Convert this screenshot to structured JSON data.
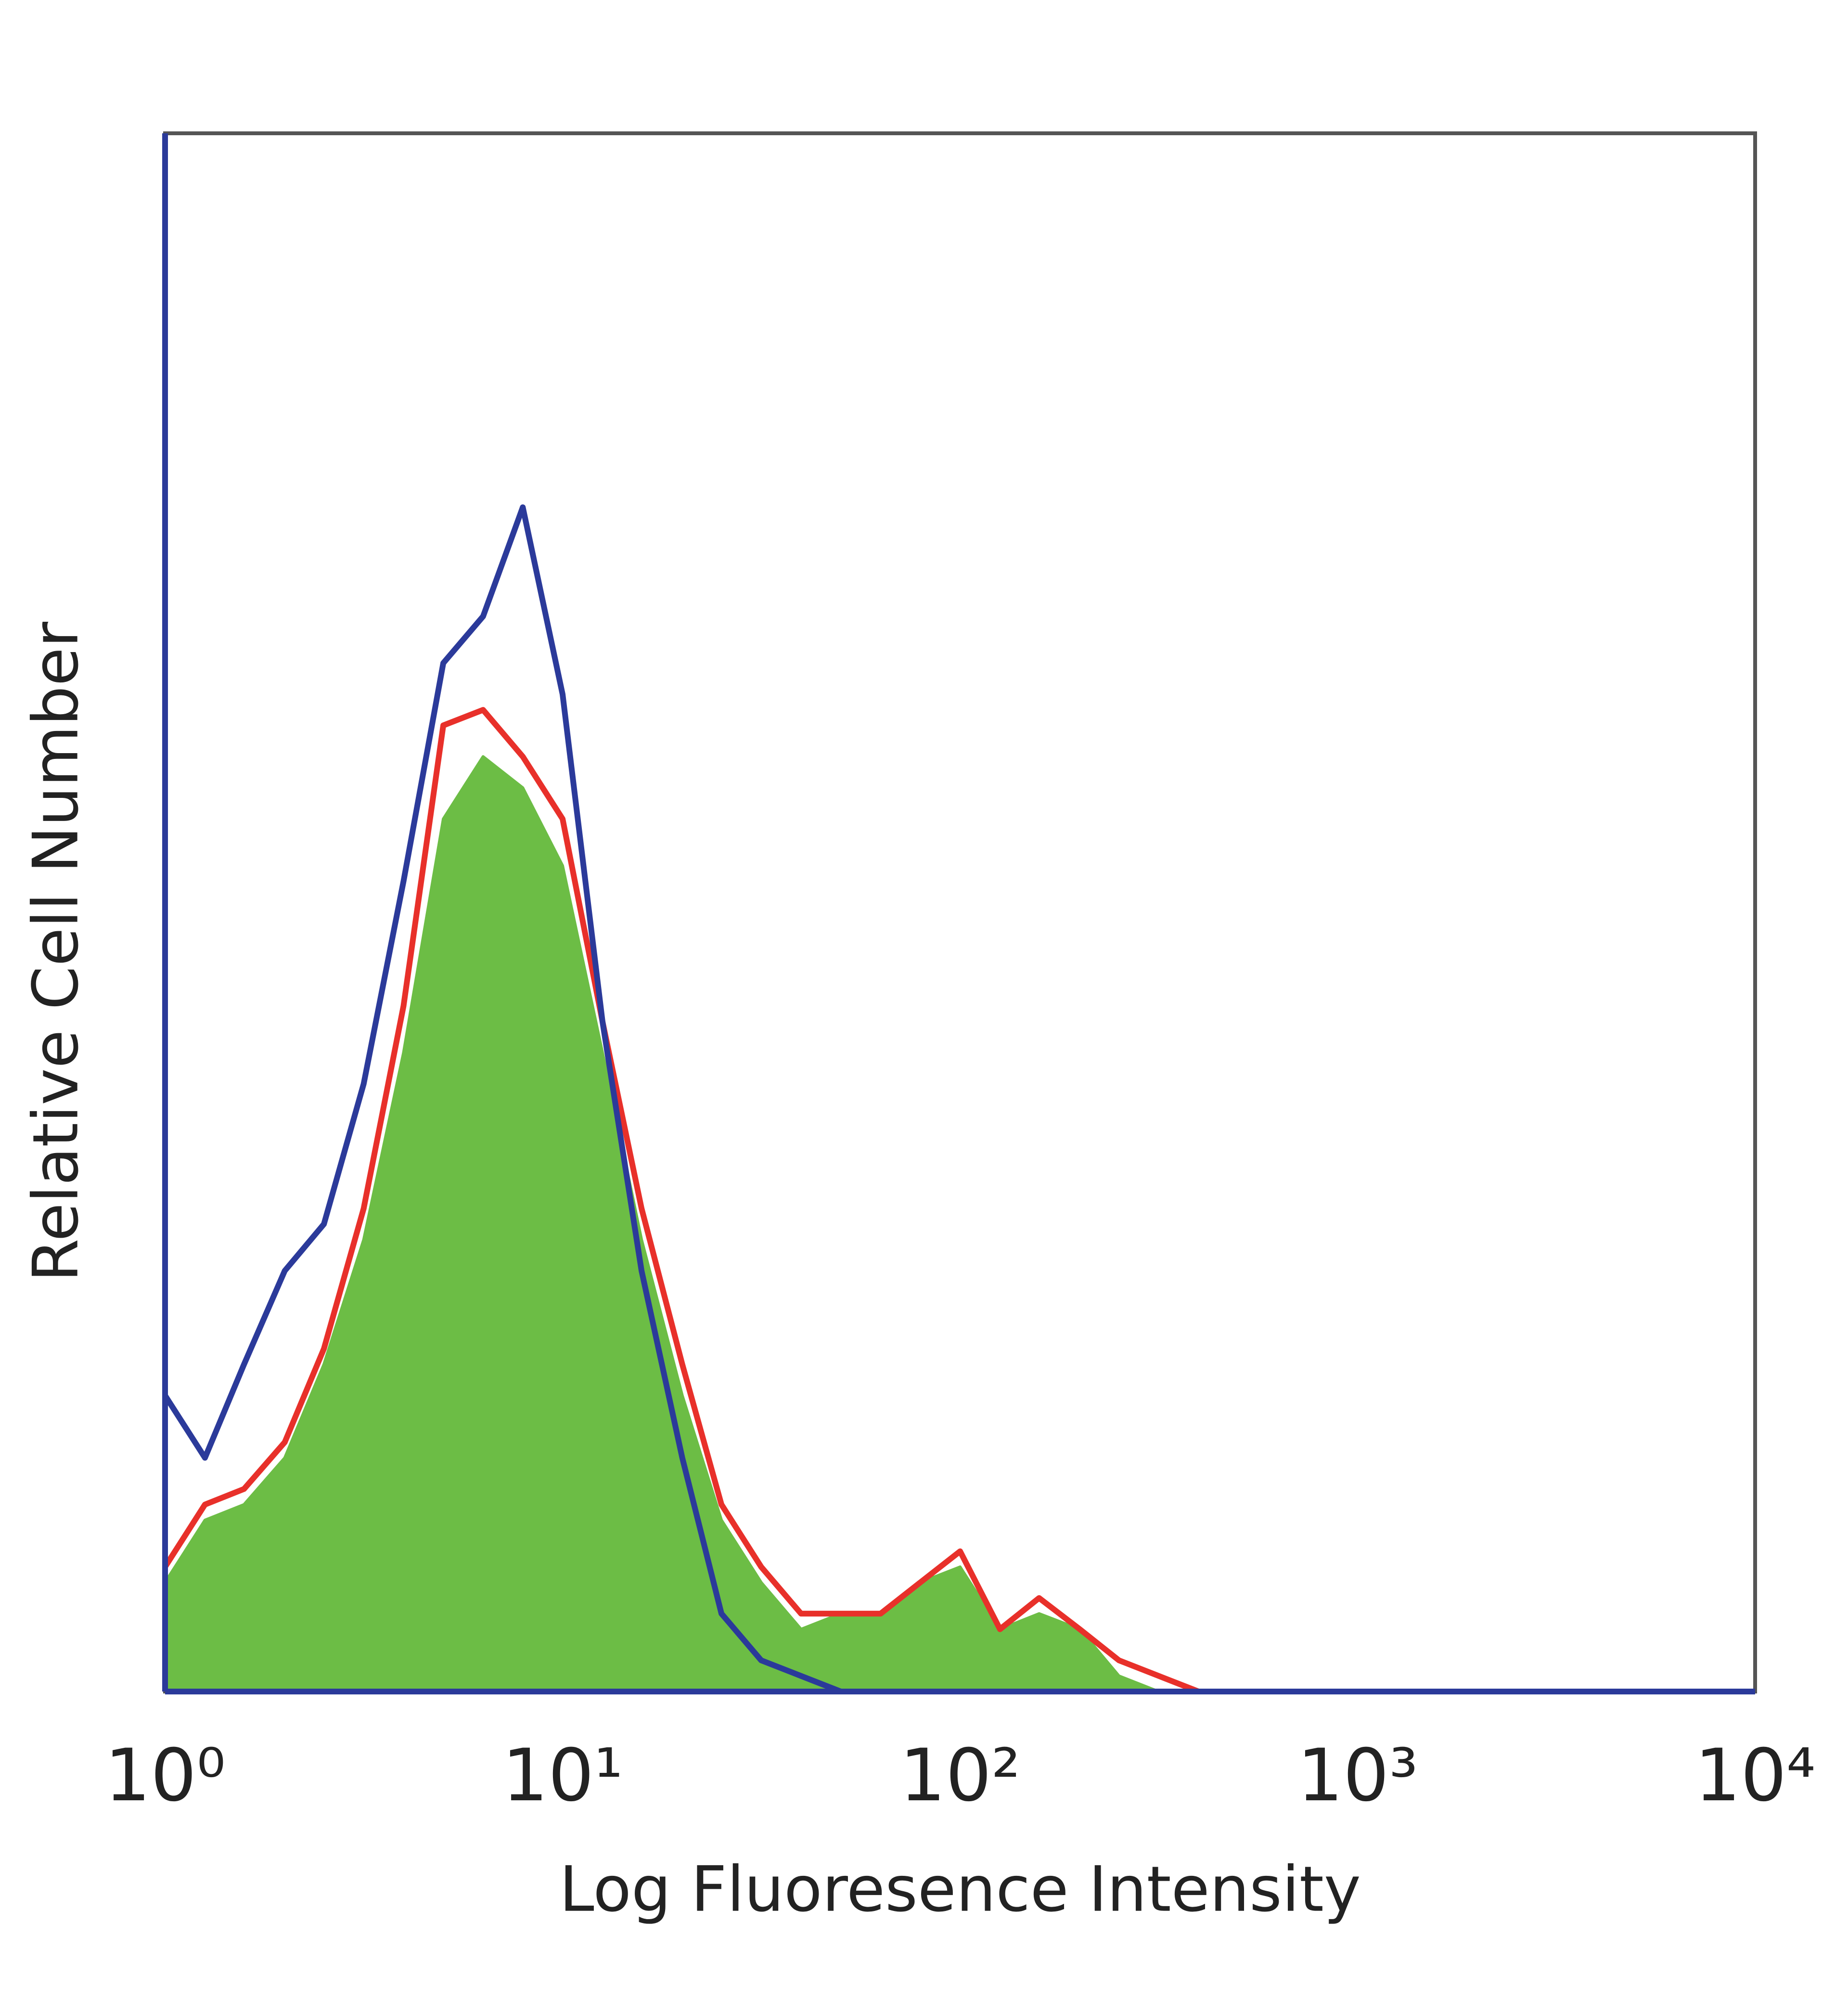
{
  "chart_data": {
    "type": "line",
    "x_label": "Log Fluoresence Intensity",
    "y_label": "Relative Cell Number",
    "log_x": true,
    "xlim": [
      1,
      10000
    ],
    "ylim": [
      0,
      100
    ],
    "xticks": [
      {
        "value": 1,
        "label": "10⁰"
      },
      {
        "value": 10,
        "label": "10¹"
      },
      {
        "value": 100,
        "label": "10²"
      },
      {
        "value": 1000,
        "label": "10³"
      },
      {
        "value": 10000,
        "label": "10⁴"
      }
    ],
    "x": [
      1,
      1.26,
      1.58,
      2,
      2.51,
      3.16,
      3.98,
      5.01,
      6.31,
      7.94,
      10,
      12.6,
      15.8,
      20,
      25.1,
      31.6,
      39.8,
      50.1,
      63.1,
      79.4,
      100,
      126,
      158,
      200,
      251,
      316,
      398
    ],
    "series": [
      {
        "color": "#6cbd45",
        "filled": true,
        "values": [
          7,
          11,
          12,
          15,
          21,
          29,
          41,
          56,
          60,
          58,
          53,
          41,
          29,
          19,
          11,
          7,
          4,
          5,
          5,
          7,
          8,
          4,
          5,
          4,
          1,
          0,
          0
        ]
      },
      {
        "color": "#e8302a",
        "filled": false,
        "values": [
          8,
          12,
          13,
          16,
          22,
          31,
          44,
          62,
          63,
          60,
          56,
          43,
          31,
          21,
          12,
          8,
          5,
          5,
          5,
          7,
          9,
          4,
          6,
          4,
          2,
          1,
          0
        ]
      },
      {
        "color": "#2b3a9a",
        "filled": false,
        "values": [
          19,
          15,
          21,
          27,
          30,
          39,
          52,
          66,
          69,
          76,
          64,
          43,
          27,
          15,
          5,
          2,
          1,
          0,
          0,
          0,
          0,
          0,
          0,
          0,
          0,
          0,
          0
        ]
      }
    ]
  }
}
